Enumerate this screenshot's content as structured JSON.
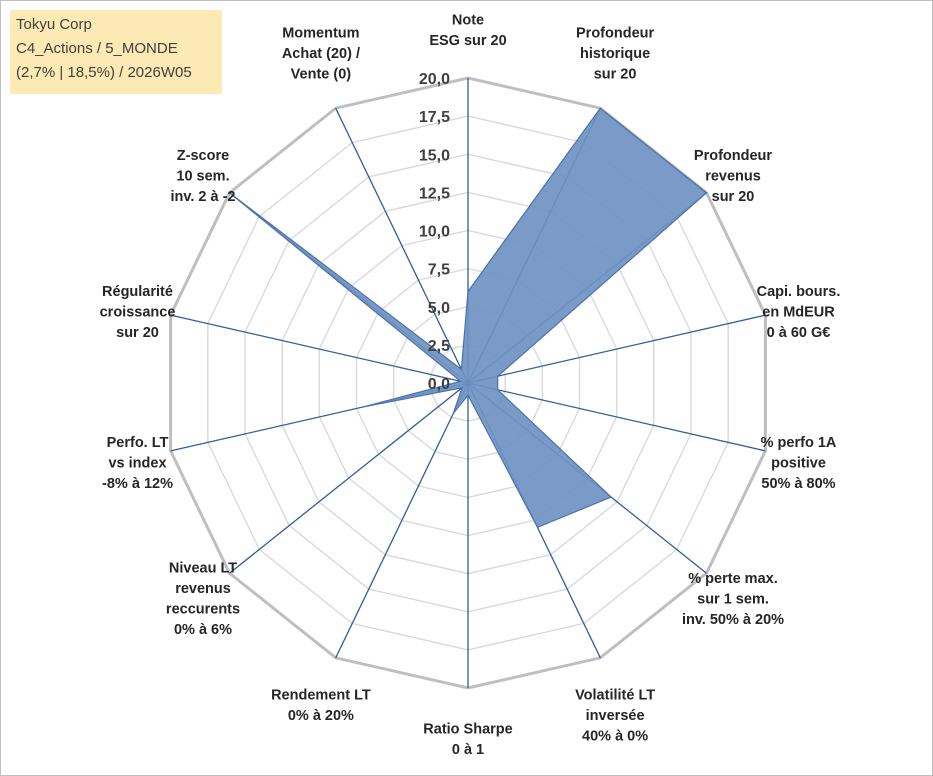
{
  "title_box": {
    "line1": "Tokyu Corp",
    "line2": "C4_Actions / 5_MONDE",
    "line3": "(2,7% | 18,5%) / 2026W05"
  },
  "colors": {
    "title_bg": "#fde9b3",
    "series_fill": "#6f93c2",
    "series_stroke": "#4a72aa",
    "spoke": "#2f5d9e",
    "grid": "#d9d9d9",
    "outer_ring": "#bfbfbf"
  },
  "chart_data": {
    "type": "radar",
    "rmin": 0,
    "rmax": 20,
    "ticks": [
      "0,0",
      "2,5",
      "5,0",
      "7,5",
      "10,0",
      "12,5",
      "15,0",
      "17,5",
      "20,0"
    ],
    "grid": true,
    "axes": [
      [
        "Note",
        "ESG sur 20"
      ],
      [
        "Profondeur",
        "historique",
        "sur 20"
      ],
      [
        "Profondeur",
        "revenus",
        "sur 20"
      ],
      [
        "Capi. bours.",
        "en MdEUR",
        "0 à 60 G€"
      ],
      [
        "% perfo 1A",
        "positive",
        "50% à 80%"
      ],
      [
        "% perte max.",
        "sur 1 sem.",
        "inv. 50% à 20%"
      ],
      [
        "Volatilité LT",
        "inversée",
        "40% à 0%"
      ],
      [
        "Ratio Sharpe",
        "0 à 1"
      ],
      [
        "Rendement LT",
        "0% à 20%"
      ],
      [
        "Niveau LT",
        "revenus",
        "reccurents",
        "0% à 6%"
      ],
      [
        "Perfo. LT",
        "vs index",
        "-8% à 12%"
      ],
      [
        "Régularité",
        "croissance",
        "sur 20"
      ],
      [
        "Z-score",
        "10 sem.",
        "inv. 2 à -2"
      ],
      [
        "Momentum",
        "Achat (20) /",
        "Vente (0)"
      ]
    ],
    "series": [
      {
        "name": "Tokyu Corp",
        "values": [
          6.0,
          20.0,
          20.0,
          2.0,
          2.0,
          12.0,
          10.5,
          0.8,
          2.2,
          0.5,
          7.0,
          0.5,
          20.0,
          1.0
        ]
      }
    ]
  }
}
